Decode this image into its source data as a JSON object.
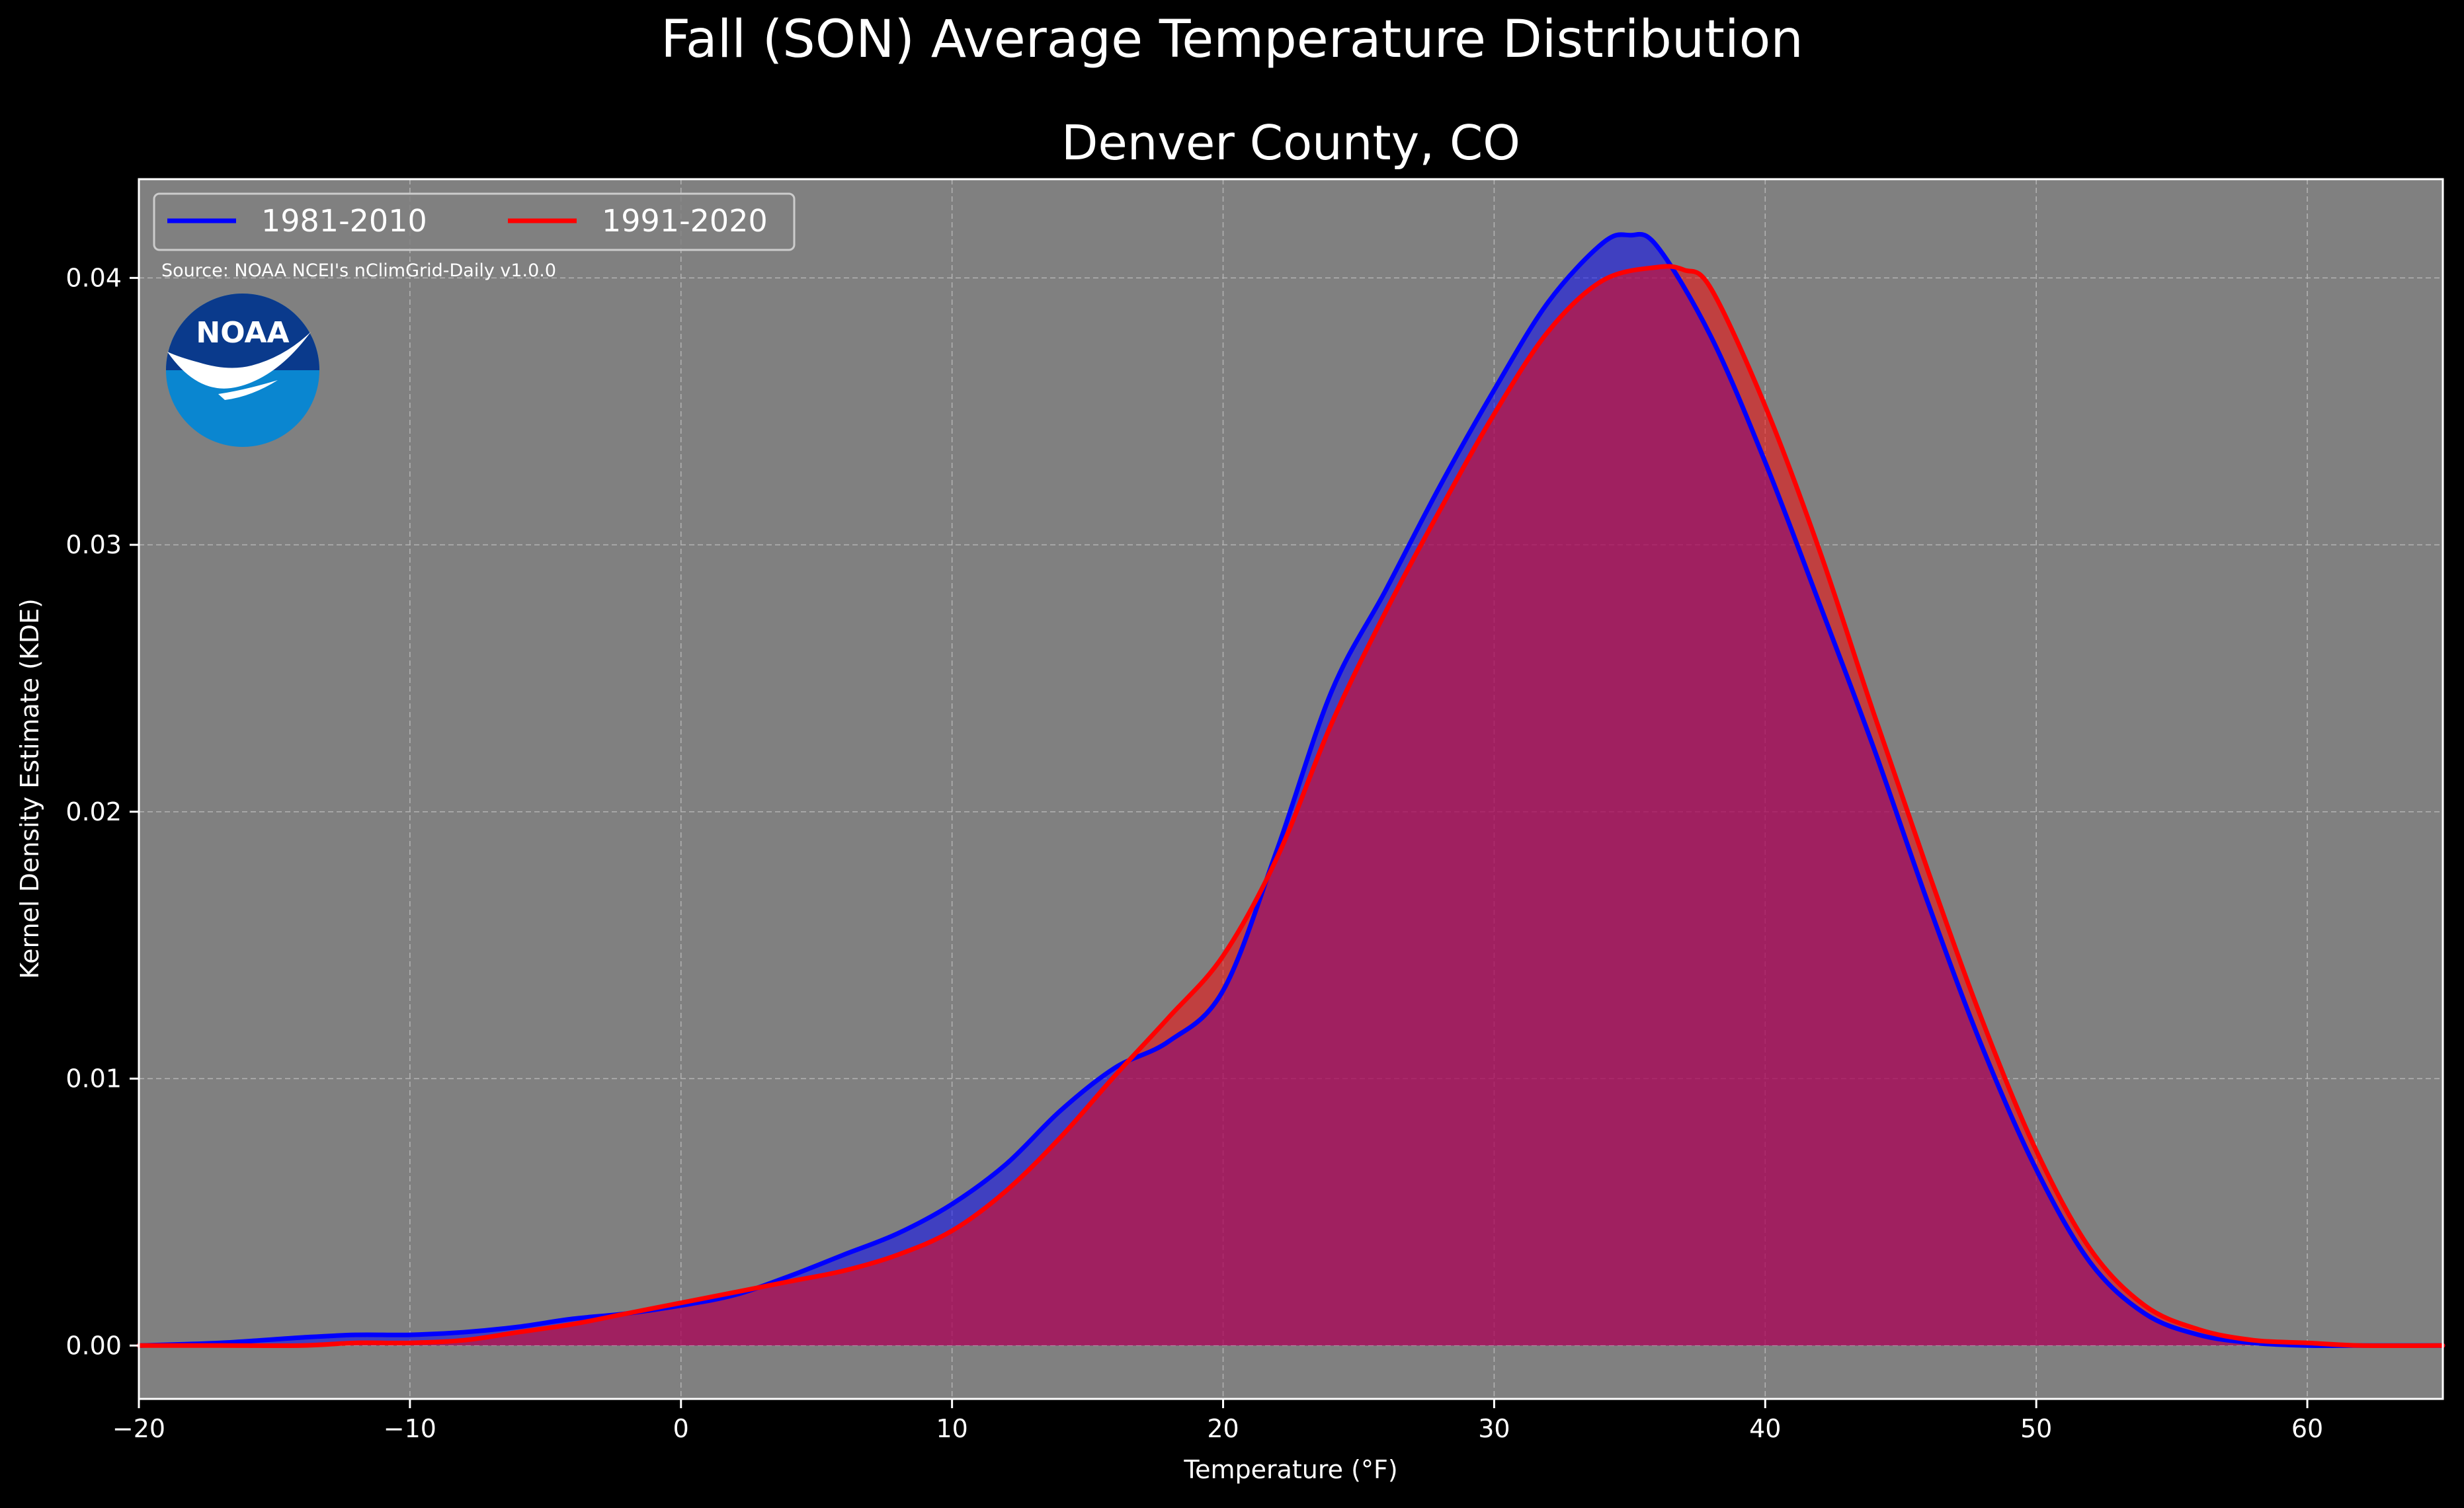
{
  "chart_data": {
    "type": "area",
    "suptitle": "Fall (SON) Average Temperature Distribution",
    "title": "Denver County, CO",
    "xlabel": "Temperature (°F)",
    "ylabel": "Kernel Density Estimate (KDE)",
    "xlim": [
      -20,
      65
    ],
    "ylim": [
      -0.002,
      0.0437
    ],
    "xticks": [
      -20,
      -10,
      0,
      10,
      20,
      30,
      40,
      50,
      60
    ],
    "xtick_labels": [
      "−20",
      "−10",
      "0",
      "10",
      "20",
      "30",
      "40",
      "50",
      "60"
    ],
    "yticks": [
      0.0,
      0.01,
      0.02,
      0.03,
      0.04
    ],
    "ytick_labels": [
      "0.00",
      "0.01",
      "0.02",
      "0.03",
      "0.04"
    ],
    "grid": true,
    "legend_position": "top-left",
    "background_color": "#808080",
    "annotation": "Source: NOAA NCEI's nClimGrid-Daily v1.0.0",
    "logo_text": "NOAA",
    "series": [
      {
        "name": "1981-2010",
        "color": "#0000ff",
        "fill_color": "#0000ff",
        "x": [
          -20,
          -17,
          -14,
          -12,
          -10,
          -8,
          -6,
          -4,
          -2,
          0,
          2,
          4,
          6,
          8,
          10,
          12,
          14,
          16,
          18,
          20,
          22,
          24,
          26,
          28,
          30,
          32,
          34,
          35,
          36,
          38,
          40,
          42,
          44,
          46,
          48,
          50,
          52,
          54,
          56,
          58,
          60,
          62,
          65
        ],
        "y": [
          0.0,
          0.0001,
          0.0003,
          0.0004,
          0.0004,
          0.0005,
          0.0007,
          0.001,
          0.0012,
          0.0015,
          0.0019,
          0.0026,
          0.0034,
          0.0042,
          0.0053,
          0.0068,
          0.0088,
          0.0104,
          0.0114,
          0.0133,
          0.0186,
          0.0245,
          0.0283,
          0.0322,
          0.0358,
          0.0391,
          0.0413,
          0.0416,
          0.0412,
          0.0378,
          0.0331,
          0.0278,
          0.0224,
          0.0166,
          0.0112,
          0.0066,
          0.0031,
          0.0012,
          0.0004,
          0.0001,
          0.0,
          0.0,
          0.0
        ]
      },
      {
        "name": "1991-2020",
        "color": "#ff0000",
        "fill_color": "#ff0000",
        "x": [
          -20,
          -17,
          -14,
          -12,
          -10,
          -8,
          -6,
          -4,
          -2,
          0,
          2,
          4,
          6,
          8,
          10,
          12,
          14,
          16,
          18,
          20,
          22,
          24,
          26,
          28,
          30,
          32,
          34,
          36,
          37,
          38,
          40,
          42,
          44,
          46,
          48,
          50,
          52,
          54,
          56,
          58,
          60,
          62,
          65
        ],
        "y": [
          0.0,
          0.0,
          0.0,
          0.0001,
          0.0001,
          0.0002,
          0.0005,
          0.0008,
          0.0012,
          0.0016,
          0.002,
          0.0024,
          0.0028,
          0.0034,
          0.0043,
          0.0058,
          0.0078,
          0.0101,
          0.0123,
          0.0146,
          0.0183,
          0.0233,
          0.0275,
          0.0313,
          0.0349,
          0.038,
          0.0399,
          0.0404,
          0.0403,
          0.0396,
          0.0352,
          0.0298,
          0.0237,
          0.0178,
          0.0122,
          0.0073,
          0.0036,
          0.0015,
          0.0006,
          0.0002,
          0.0001,
          0.0,
          0.0
        ]
      }
    ]
  }
}
